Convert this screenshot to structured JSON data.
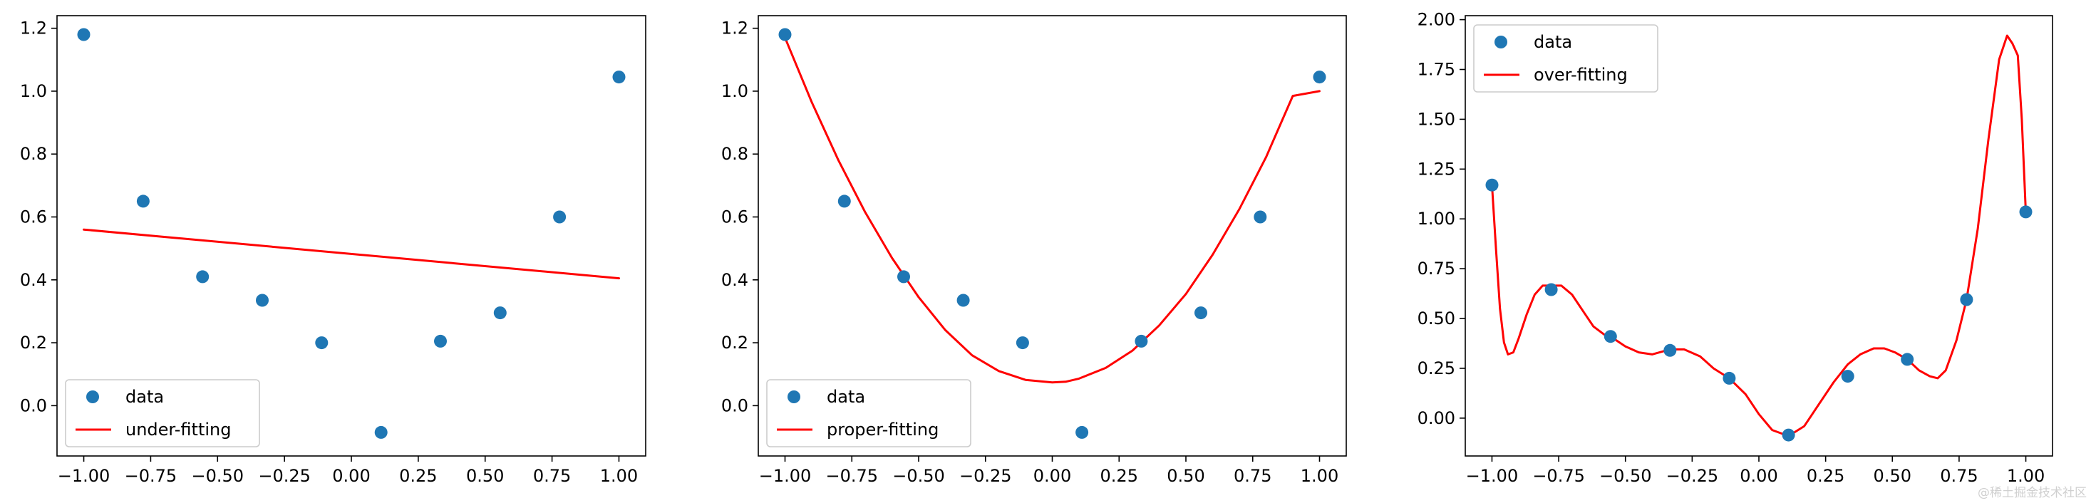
{
  "chart_data": [
    {
      "type": "scatter",
      "title": "",
      "xlabel": "",
      "ylabel": "",
      "xlim": [
        -1.1,
        1.1
      ],
      "ylim": [
        -0.16,
        1.24
      ],
      "xticks": [
        -1.0,
        -0.75,
        -0.5,
        -0.25,
        0.0,
        0.25,
        0.5,
        0.75,
        1.0
      ],
      "xtick_labels": [
        "−1.00",
        "−0.75",
        "−0.50",
        "−0.25",
        "0.00",
        "0.25",
        "0.50",
        "0.75",
        "1.00"
      ],
      "yticks": [
        0.0,
        0.2,
        0.4,
        0.6,
        0.8,
        1.0,
        1.2
      ],
      "ytick_labels": [
        "0.0",
        "0.2",
        "0.4",
        "0.6",
        "0.8",
        "1.0",
        "1.2"
      ],
      "grid": false,
      "legend_position": "lower-left",
      "series": [
        {
          "name": "data",
          "kind": "scatter",
          "color": "#1f77b4",
          "x": [
            -1.0,
            -0.778,
            -0.556,
            -0.333,
            -0.111,
            0.111,
            0.333,
            0.556,
            0.778,
            1.0
          ],
          "y": [
            1.18,
            0.65,
            0.41,
            0.335,
            0.2,
            -0.085,
            0.205,
            0.295,
            0.6,
            1.045
          ]
        },
        {
          "name": "under-fitting",
          "kind": "line",
          "color": "#ff0000",
          "x": [
            -1.0,
            1.0
          ],
          "y": [
            0.56,
            0.405
          ]
        }
      ]
    },
    {
      "type": "scatter",
      "title": "",
      "xlabel": "",
      "ylabel": "",
      "xlim": [
        -1.1,
        1.1
      ],
      "ylim": [
        -0.16,
        1.24
      ],
      "xticks": [
        -1.0,
        -0.75,
        -0.5,
        -0.25,
        0.0,
        0.25,
        0.5,
        0.75,
        1.0
      ],
      "xtick_labels": [
        "−1.00",
        "−0.75",
        "−0.50",
        "−0.25",
        "0.00",
        "0.25",
        "0.50",
        "0.75",
        "1.00"
      ],
      "yticks": [
        0.0,
        0.2,
        0.4,
        0.6,
        0.8,
        1.0,
        1.2
      ],
      "ytick_labels": [
        "0.0",
        "0.2",
        "0.4",
        "0.6",
        "0.8",
        "1.0",
        "1.2"
      ],
      "grid": false,
      "legend_position": "lower-left",
      "series": [
        {
          "name": "data",
          "kind": "scatter",
          "color": "#1f77b4",
          "x": [
            -1.0,
            -0.778,
            -0.556,
            -0.333,
            -0.111,
            0.111,
            0.333,
            0.556,
            0.778,
            1.0
          ],
          "y": [
            1.18,
            0.65,
            0.41,
            0.335,
            0.2,
            -0.085,
            0.205,
            0.295,
            0.6,
            1.045
          ]
        },
        {
          "name": "proper-fitting",
          "kind": "line",
          "color": "#ff0000",
          "x": [
            -1.0,
            -0.9,
            -0.8,
            -0.7,
            -0.6,
            -0.5,
            -0.4,
            -0.3,
            -0.2,
            -0.1,
            0.0,
            0.05,
            0.1,
            0.2,
            0.3,
            0.4,
            0.5,
            0.6,
            0.7,
            0.8,
            0.9,
            1.0
          ],
          "y": [
            1.17,
            0.965,
            0.78,
            0.615,
            0.47,
            0.345,
            0.24,
            0.16,
            0.11,
            0.082,
            0.074,
            0.076,
            0.086,
            0.12,
            0.175,
            0.255,
            0.355,
            0.48,
            0.625,
            0.79,
            0.985,
            1.0
          ]
        }
      ]
    },
    {
      "type": "scatter",
      "title": "",
      "xlabel": "",
      "ylabel": "",
      "xlim": [
        -1.1,
        1.1
      ],
      "ylim": [
        -0.19,
        2.02
      ],
      "xticks": [
        -1.0,
        -0.75,
        -0.5,
        -0.25,
        0.0,
        0.25,
        0.5,
        0.75,
        1.0
      ],
      "xtick_labels": [
        "−1.00",
        "−0.75",
        "−0.50",
        "−0.25",
        "0.00",
        "0.25",
        "0.50",
        "0.75",
        "1.00"
      ],
      "yticks": [
        0.0,
        0.25,
        0.5,
        0.75,
        1.0,
        1.25,
        1.5,
        1.75,
        2.0
      ],
      "ytick_labels": [
        "0.00",
        "0.25",
        "0.50",
        "0.75",
        "1.00",
        "1.25",
        "1.50",
        "1.75",
        "2.00"
      ],
      "grid": false,
      "legend_position": "upper-left",
      "series": [
        {
          "name": "data",
          "kind": "scatter",
          "color": "#1f77b4",
          "x": [
            -1.0,
            -0.778,
            -0.556,
            -0.333,
            -0.111,
            0.111,
            0.333,
            0.556,
            0.778,
            1.0
          ],
          "y": [
            1.17,
            0.645,
            0.41,
            0.34,
            0.2,
            -0.085,
            0.21,
            0.295,
            0.595,
            1.035
          ]
        },
        {
          "name": "over-fitting",
          "kind": "line",
          "color": "#ff0000",
          "x": [
            -1.0,
            -0.985,
            -0.97,
            -0.955,
            -0.94,
            -0.92,
            -0.9,
            -0.87,
            -0.84,
            -0.81,
            -0.778,
            -0.74,
            -0.7,
            -0.66,
            -0.62,
            -0.58,
            -0.556,
            -0.5,
            -0.45,
            -0.4,
            -0.333,
            -0.28,
            -0.22,
            -0.17,
            -0.111,
            -0.05,
            0.0,
            0.05,
            0.111,
            0.17,
            0.22,
            0.28,
            0.333,
            0.38,
            0.43,
            0.47,
            0.51,
            0.556,
            0.6,
            0.64,
            0.67,
            0.7,
            0.74,
            0.778,
            0.82,
            0.86,
            0.9,
            0.93,
            0.95,
            0.97,
            0.985,
            1.0
          ],
          "y": [
            1.17,
            0.85,
            0.55,
            0.38,
            0.32,
            0.33,
            0.4,
            0.52,
            0.62,
            0.665,
            0.665,
            0.665,
            0.62,
            0.54,
            0.46,
            0.42,
            0.41,
            0.36,
            0.33,
            0.32,
            0.345,
            0.345,
            0.31,
            0.25,
            0.2,
            0.12,
            0.02,
            -0.06,
            -0.09,
            -0.04,
            0.06,
            0.18,
            0.27,
            0.32,
            0.35,
            0.35,
            0.33,
            0.295,
            0.24,
            0.21,
            0.2,
            0.24,
            0.39,
            0.595,
            0.95,
            1.4,
            1.8,
            1.92,
            1.88,
            1.82,
            1.5,
            1.035
          ]
        }
      ]
    }
  ],
  "watermark": "@稀土掘金技术社区"
}
